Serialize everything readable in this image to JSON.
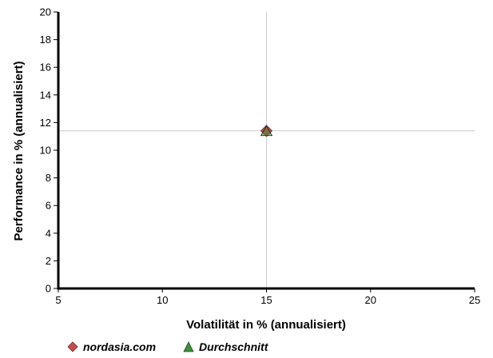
{
  "chart_data": {
    "type": "scatter",
    "xlabel": "Volatilität in % (annualisiert)",
    "ylabel": "Performance in % (annualisiert)",
    "xlim": [
      5,
      25
    ],
    "ylim": [
      0,
      20
    ],
    "x_ticks": [
      5,
      10,
      15,
      20,
      25
    ],
    "y_ticks": [
      0,
      2,
      4,
      6,
      8,
      10,
      12,
      14,
      16,
      18,
      20
    ],
    "grid": false,
    "crosshair": {
      "x": 15,
      "y": 11.4
    },
    "legend_position": "bottom-left",
    "series": [
      {
        "name": "nordasia.com",
        "marker": "diamond",
        "color": "#c0504d",
        "points": [
          {
            "x": 15.0,
            "y": 11.4
          }
        ]
      },
      {
        "name": "Durchschnitt",
        "marker": "triangle",
        "color": "#3f8a3f",
        "points": [
          {
            "x": 15.0,
            "y": 11.4
          }
        ]
      }
    ]
  }
}
